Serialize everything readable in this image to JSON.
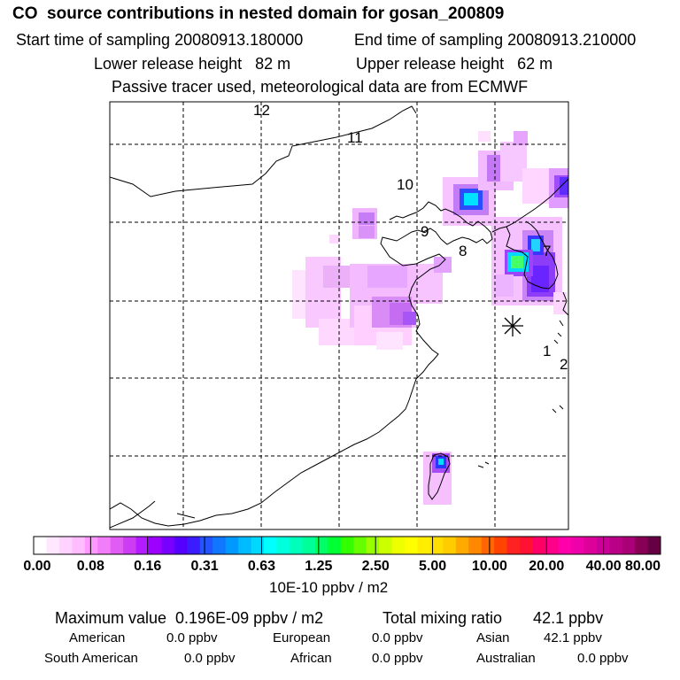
{
  "header": {
    "title": "CO  source contributions in nested domain for gosan_200809",
    "start_label": "Start time of sampling 20080913.180000",
    "end_label": "End time of sampling 20080913.210000",
    "lower_label": "Lower release height   82 m",
    "upper_label": "Upper release height   62 m",
    "tracer_label": "Passive tracer used, meteorological data are from ECMWF"
  },
  "chart_data": {
    "type": "heatmap",
    "title": "CO  source contributions in nested domain for gosan_200809",
    "units": "10E-10 ppbv / m2",
    "colorbar_ticks": [
      "0.00",
      "0.08",
      "0.16",
      "0.31",
      "0.63",
      "1.25",
      "2.50",
      "5.00",
      "10.00",
      "20.00",
      "40.00",
      "80.00"
    ],
    "colorbar_colors": [
      "#ffffff",
      "#ffe8ff",
      "#ffd2ff",
      "#ffbdff",
      "#ff99ff",
      "#f27df8",
      "#e05cf5",
      "#cd3bf2",
      "#b21cff",
      "#9d00ff",
      "#7700ff",
      "#5500ff",
      "#3a1cff",
      "#2255ff",
      "#1177ff",
      "#0099ff",
      "#00bbff",
      "#00d8ff",
      "#00ffff",
      "#00ffdd",
      "#00ffbb",
      "#00ff99",
      "#00ff66",
      "#00ff33",
      "#33ff00",
      "#66ff00",
      "#99ff00",
      "#ccff00",
      "#eeff00",
      "#ffff00",
      "#ffee00",
      "#ffdd00",
      "#ffcc00",
      "#ffaa00",
      "#ff8800",
      "#ff6600",
      "#ff4400",
      "#ff2222",
      "#ff1133",
      "#ff0066",
      "#ff0088",
      "#ff00aa",
      "#ee00aa",
      "#dd0099",
      "#cc0099",
      "#bb0088",
      "#aa0077",
      "#880055",
      "#660044"
    ],
    "track_points": [
      "1",
      "2",
      "7",
      "8",
      "9",
      "10",
      "11",
      "12"
    ],
    "receptor_marker": "asterisk"
  },
  "stats": {
    "max_label": "Maximum value  0.196E-09 ppbv / m2",
    "total_label": "Total mixing ratio       42.1 ppbv",
    "regions": [
      {
        "name": "American",
        "value": "0.0 ppbv"
      },
      {
        "name": "European",
        "value": "0.0 ppbv"
      },
      {
        "name": "Asian",
        "value": "42.1 ppbv"
      },
      {
        "name": "South American",
        "value": "0.0 ppbv"
      },
      {
        "name": "African",
        "value": "0.0 ppbv"
      },
      {
        "name": "Australian",
        "value": "0.0 ppbv"
      }
    ]
  }
}
